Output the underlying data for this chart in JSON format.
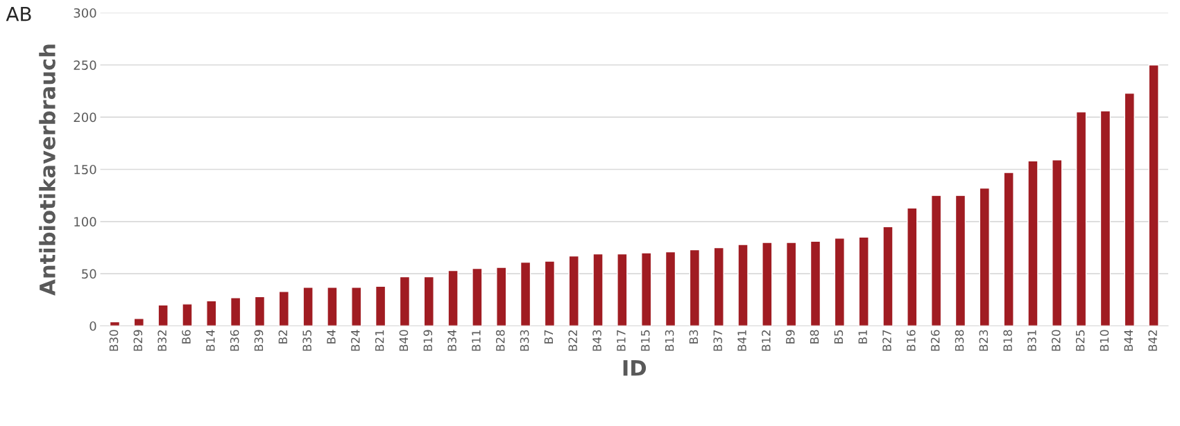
{
  "chart_data": {
    "type": "bar",
    "title": "AB",
    "xlabel": "ID",
    "ylabel": "Antibiotikaverbrauch",
    "categories": [
      "B30",
      "B29",
      "B32",
      "B6",
      "B14",
      "B36",
      "B39",
      "B2",
      "B35",
      "B4",
      "B24",
      "B21",
      "B40",
      "B19",
      "B34",
      "B11",
      "B28",
      "B33",
      "B7",
      "B22",
      "B43",
      "B17",
      "B15",
      "B13",
      "B3",
      "B37",
      "B41",
      "B12",
      "B9",
      "B8",
      "B5",
      "B1",
      "B27",
      "B16",
      "B26",
      "B38",
      "B23",
      "B18",
      "B31",
      "B20",
      "B25",
      "B10",
      "B44",
      "B42"
    ],
    "values": [
      4,
      7,
      20,
      21,
      24,
      27,
      28,
      33,
      37,
      37,
      37,
      38,
      47,
      47,
      53,
      55,
      56,
      61,
      62,
      67,
      69,
      69,
      70,
      71,
      73,
      75,
      78,
      80,
      80,
      81,
      84,
      85,
      95,
      113,
      125,
      125,
      132,
      147,
      158,
      159,
      205,
      206,
      223,
      250
    ],
    "color": "#a01c22",
    "ylim": [
      0,
      300
    ],
    "yticks": [
      0,
      50,
      100,
      150,
      200,
      250,
      300
    ],
    "grid": "y"
  }
}
